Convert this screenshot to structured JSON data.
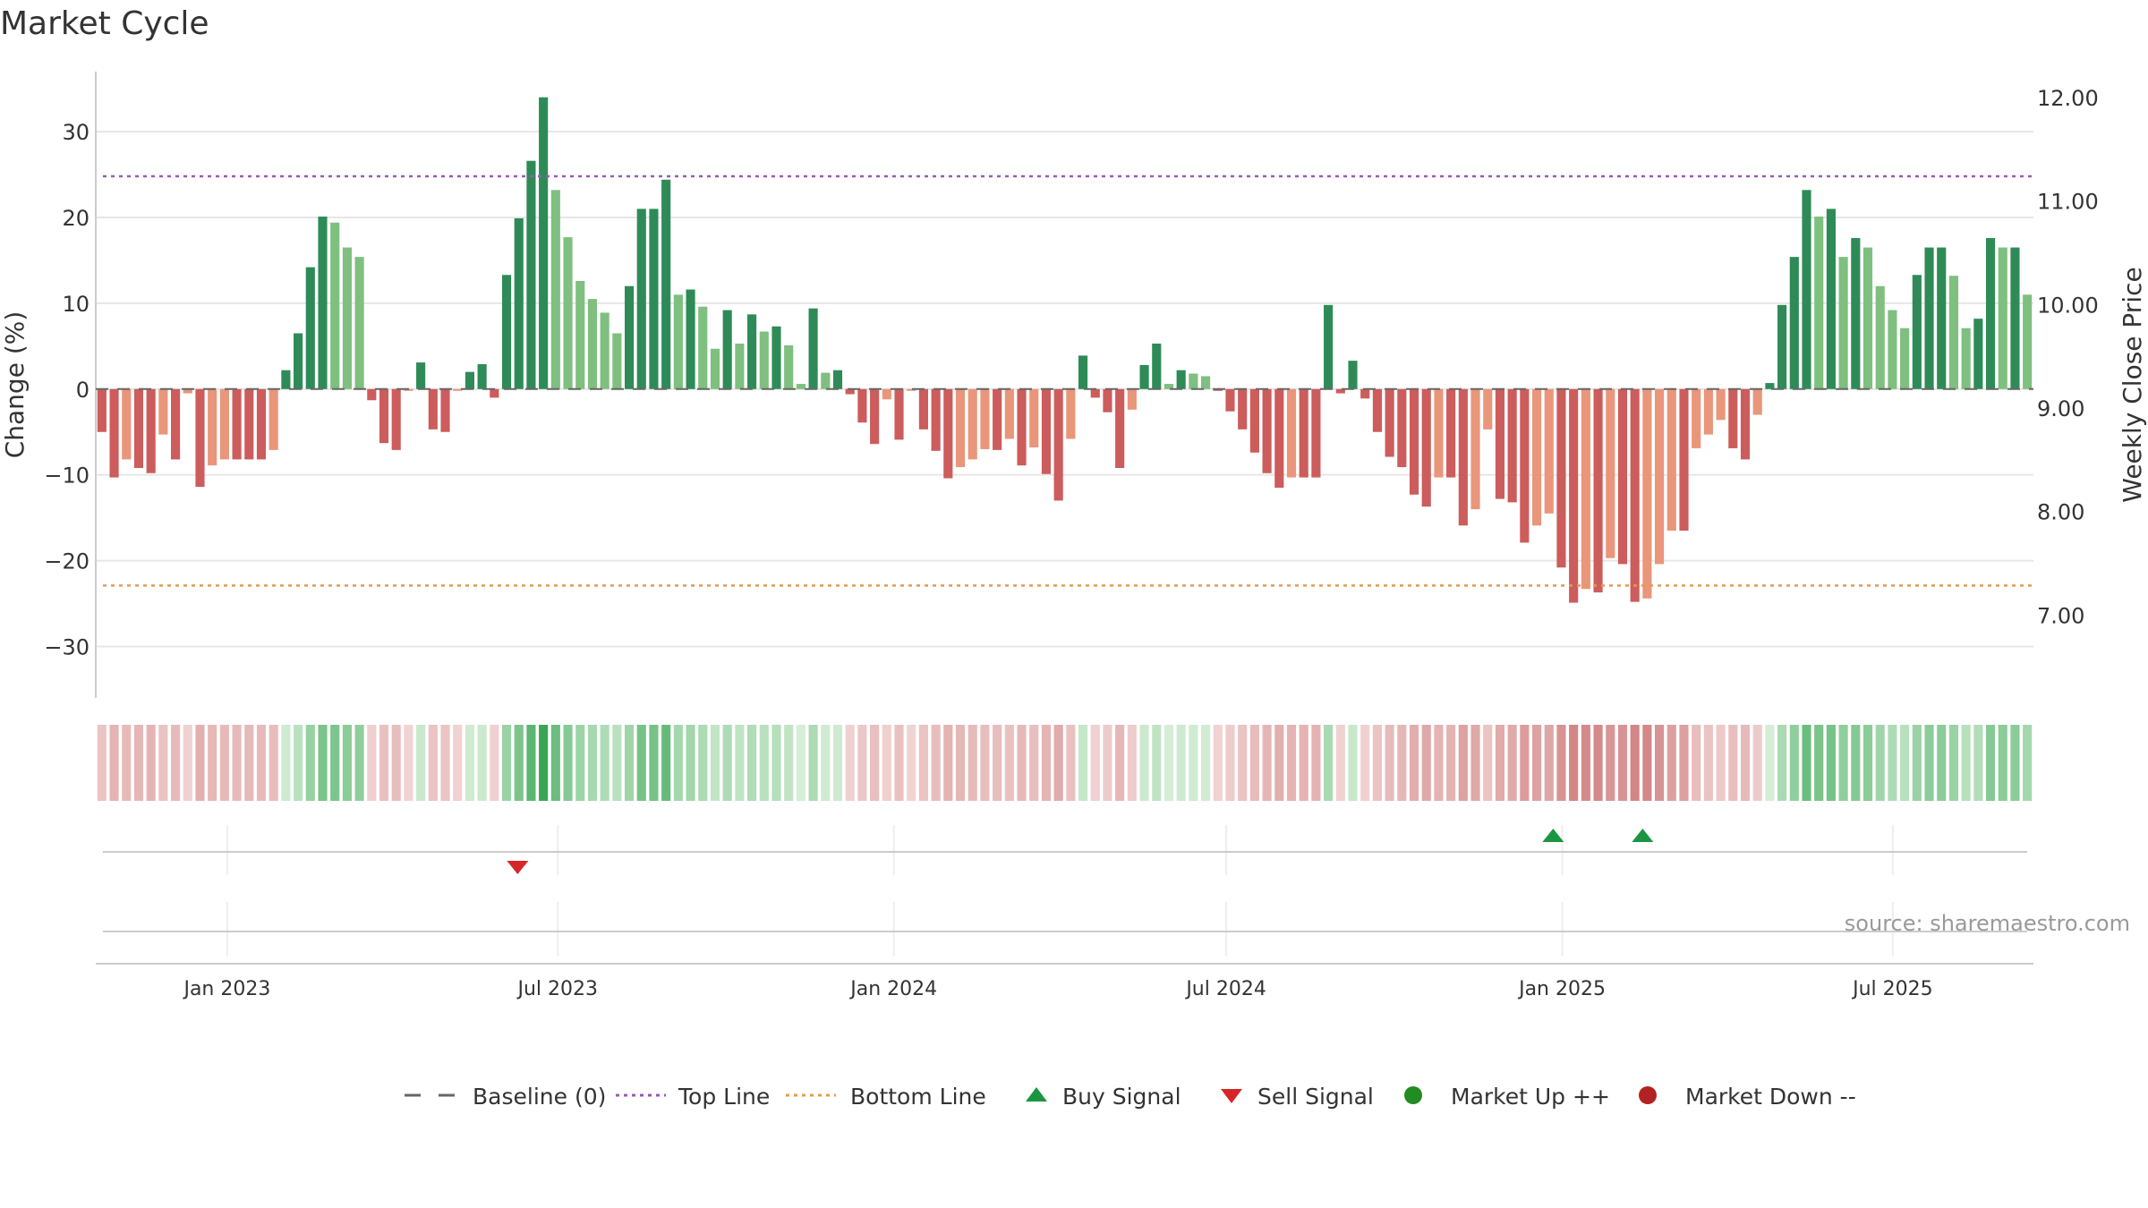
{
  "title": "Market Cycle",
  "source": "source: sharemaestro.com",
  "colors": {
    "up_strong": "#2e8b57",
    "up_light": "#7fbf7f",
    "down_strong": "#cd5c5c",
    "down_light": "#e9967a",
    "top_line": "#9b59b6",
    "bottom_line": "#e59a4f",
    "grid": "#e6e6e6",
    "buy": "#1a9641",
    "sell": "#d62728",
    "market_up": "#228b22",
    "market_down": "#b22222",
    "baseline": "#666666"
  },
  "legend": [
    {
      "label": "Baseline (0)",
      "symbol": "dash-long",
      "color": "#666666"
    },
    {
      "label": "Top Line",
      "symbol": "dash-short",
      "color": "#9b59b6"
    },
    {
      "label": "Bottom Line",
      "symbol": "dash-short",
      "color": "#e59a4f"
    },
    {
      "label": "Buy Signal",
      "symbol": "triangle-up",
      "color": "#1a9641"
    },
    {
      "label": "Sell Signal",
      "symbol": "triangle-down",
      "color": "#d62728"
    },
    {
      "label": "Market Up ++",
      "symbol": "circle",
      "color": "#228b22"
    },
    {
      "label": "Market Down --",
      "symbol": "circle",
      "color": "#b22222"
    }
  ],
  "chart_data": {
    "type": "bar",
    "title": "Market Cycle",
    "ylabel": "Change (%)",
    "y2label": "Weekly Close Price",
    "ylim": [
      -36,
      37
    ],
    "y_ticks": [
      30,
      20,
      10,
      0,
      -10,
      -20,
      -30
    ],
    "y_tick_labels": [
      "30",
      "20",
      "10",
      "0",
      "−10",
      "−20",
      "−30"
    ],
    "y2_ticks": [
      12.0,
      11.0,
      10.0,
      9.0,
      8.0,
      7.0
    ],
    "y2_tick_labels": [
      "12.00",
      "11.00",
      "10.00",
      "9.00",
      "8.00",
      "7.00"
    ],
    "y2lim": [
      6.2,
      12.25
    ],
    "x_start": "2022-10-21",
    "x_end": "2025-09-16",
    "x_ticks": [
      "2023-01-01",
      "2023-07-01",
      "2024-01-01",
      "2024-07-01",
      "2025-01-01",
      "2025-07-01"
    ],
    "x_tick_labels": [
      "Jan 2023",
      "Jul 2023",
      "Jan 2024",
      "Jul 2024",
      "Jan 2025",
      "Jul 2025"
    ],
    "top_line": 24.8,
    "bottom_line": -22.9,
    "baseline": 0,
    "grid": true,
    "legend_position": "bottom",
    "bars": [
      -5,
      -10.3,
      -8.2,
      -9.2,
      -9.8,
      -5.3,
      -8.2,
      -0.5,
      -11.4,
      -8.9,
      -8.2,
      -8.2,
      -8.2,
      -8.2,
      -7.1,
      2.2,
      6.5,
      14.2,
      20.1,
      19.4,
      16.5,
      15.4,
      -1.3,
      -6.3,
      -7.1,
      -0.1,
      3.1,
      -4.7,
      -5,
      -0.2,
      2,
      2.9,
      -1,
      13.3,
      19.9,
      26.6,
      34,
      23.2,
      17.7,
      12.6,
      10.5,
      8.9,
      6.5,
      12,
      21,
      21,
      24.4,
      11,
      11.6,
      9.6,
      4.7,
      9.2,
      5.3,
      8.7,
      6.7,
      7.3,
      5.1,
      0.6,
      9.4,
      1.9,
      2.2,
      -0.6,
      -3.9,
      -6.4,
      -1.2,
      -5.9,
      -0.1,
      -4.7,
      -7.2,
      -10.4,
      -9.1,
      -8.2,
      -7,
      -7.1,
      -5.8,
      -8.9,
      -6.8,
      -9.9,
      -13,
      -5.8,
      3.9,
      -1,
      -2.7,
      -9.2,
      -2.4,
      2.8,
      5.3,
      0.6,
      2.2,
      1.8,
      1.5,
      -0.2,
      -2.6,
      -4.7,
      -7.4,
      -9.8,
      -11.5,
      -10.3,
      -10.3,
      -10.3,
      9.8,
      -0.5,
      3.3,
      -1.1,
      -5,
      -7.9,
      -9.1,
      -12.3,
      -13.7,
      -10.3,
      -10.3,
      -15.9,
      -14,
      -4.7,
      -12.8,
      -13.2,
      -17.9,
      -15.9,
      -14.5,
      -20.8,
      -24.9,
      -23.3,
      -23.7,
      -19.7,
      -20.4,
      -24.8,
      -24.4,
      -20.4,
      -16.5,
      -16.5,
      -6.9,
      -5.3,
      -3.6,
      -6.9,
      -8.2,
      -3,
      0.7,
      9.8,
      15.4,
      23.2,
      20.1,
      21,
      15.4,
      17.6,
      16.5,
      12,
      9.2,
      7.1,
      13.3,
      16.5,
      16.5,
      13.2,
      7.1,
      8.2,
      17.6,
      16.5,
      16.5,
      11
    ],
    "buy_signals": [
      "2024-12-27",
      "2025-02-14"
    ],
    "sell_signals": [
      "2023-06-09"
    ]
  }
}
